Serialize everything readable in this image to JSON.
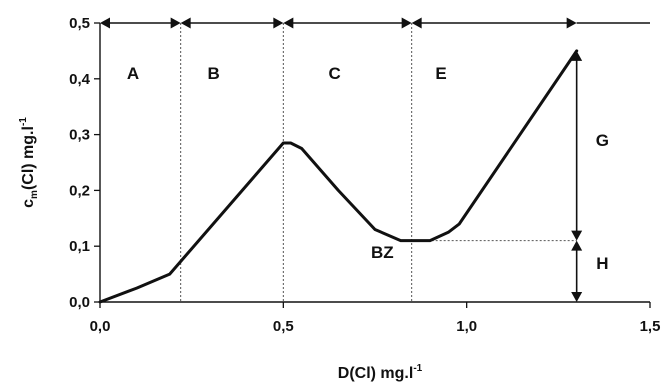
{
  "chart_data": {
    "type": "line",
    "xlabel": {
      "main": "D(Cl)   mg.l",
      "sup": "-1"
    },
    "ylabel": {
      "c": "c",
      "sub": "m",
      "rest": "(Cl)   mg.l",
      "sup": "-1"
    },
    "xlim": [
      0,
      1.5
    ],
    "ylim": [
      0,
      0.5
    ],
    "xticks": [
      {
        "value": 0,
        "label": "0,0"
      },
      {
        "value": 0.5,
        "label": "0,5"
      },
      {
        "value": 1.0,
        "label": "1,0"
      },
      {
        "value": 1.5,
        "label": "1,5"
      }
    ],
    "yticks": [
      {
        "value": 0,
        "label": "0,0"
      },
      {
        "value": 0.1,
        "label": "0,1"
      },
      {
        "value": 0.2,
        "label": "0,2"
      },
      {
        "value": 0.3,
        "label": "0,3"
      },
      {
        "value": 0.4,
        "label": "0,4"
      },
      {
        "value": 0.5,
        "label": "0,5"
      }
    ],
    "grid": false,
    "series": [
      {
        "x": [
          0.0,
          0.1,
          0.19,
          0.5,
          0.52,
          0.55,
          0.65,
          0.75,
          0.82,
          0.86,
          0.9,
          0.95,
          0.98,
          1.3
        ],
        "y": [
          0.0,
          0.025,
          0.05,
          0.285,
          0.285,
          0.275,
          0.2,
          0.13,
          0.11,
          0.11,
          0.11,
          0.125,
          0.14,
          0.45
        ]
      }
    ],
    "region_boundaries": [
      0.22,
      0.5,
      0.85
    ],
    "region_labels": [
      {
        "label": "A",
        "x": 0.09,
        "y": 0.41
      },
      {
        "label": "B",
        "x": 0.31,
        "y": 0.41
      },
      {
        "label": "C",
        "x": 0.64,
        "y": 0.41
      },
      {
        "label": "E",
        "x": 0.93,
        "y": 0.41
      }
    ],
    "annotations": [
      {
        "label": "BZ",
        "x": 0.77,
        "y": 0.09
      },
      {
        "label": "G",
        "x": 1.37,
        "y": 0.29
      },
      {
        "label": "H",
        "x": 1.37,
        "y": 0.07
      }
    ],
    "g_arrow": {
      "x": 1.3,
      "y_from": 0.11,
      "y_to": 0.45
    },
    "h_arrow": {
      "x": 1.3,
      "y_from": 0.0,
      "y_to": 0.11
    },
    "reference_line": {
      "y": 0.11,
      "x_from": 0.85,
      "x_to": 1.3
    }
  }
}
